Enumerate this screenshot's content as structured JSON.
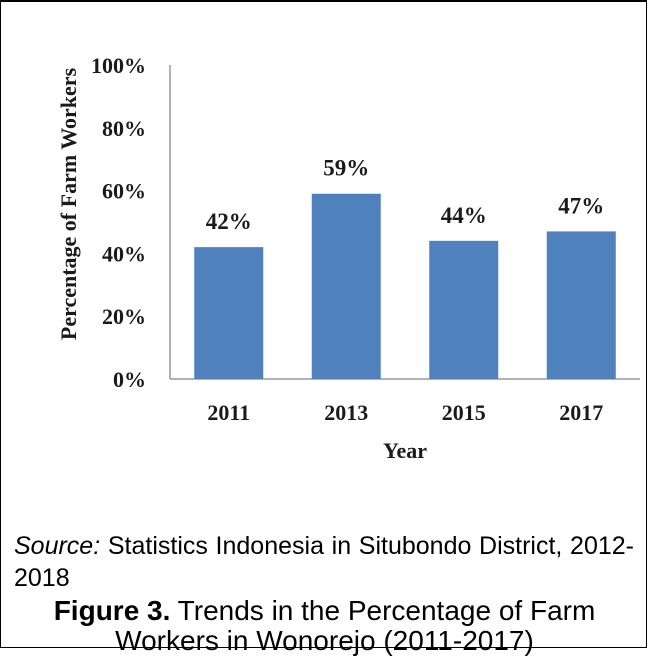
{
  "chart_data": {
    "type": "bar",
    "categories": [
      "2011",
      "2013",
      "2015",
      "2017"
    ],
    "values": [
      42,
      59,
      44,
      47
    ],
    "data_labels": [
      "42%",
      "59%",
      "44%",
      "47%"
    ],
    "xlabel": "Year",
    "ylabel": "Percentage of Farm Workers",
    "ylim": [
      0,
      100
    ],
    "yticks": [
      "0%",
      "20%",
      "40%",
      "60%",
      "80%",
      "100%"
    ],
    "grid": false,
    "legend": "none",
    "bar_color": "#4f81bd"
  },
  "source": {
    "label": "Source:",
    "text": " Statistics Indonesia in Situbondo District, 2012-2018"
  },
  "figure": {
    "label": "Figure 3.",
    "title": " Trends in the Percentage of Farm Workers in Wonorejo (2011-2017)"
  }
}
